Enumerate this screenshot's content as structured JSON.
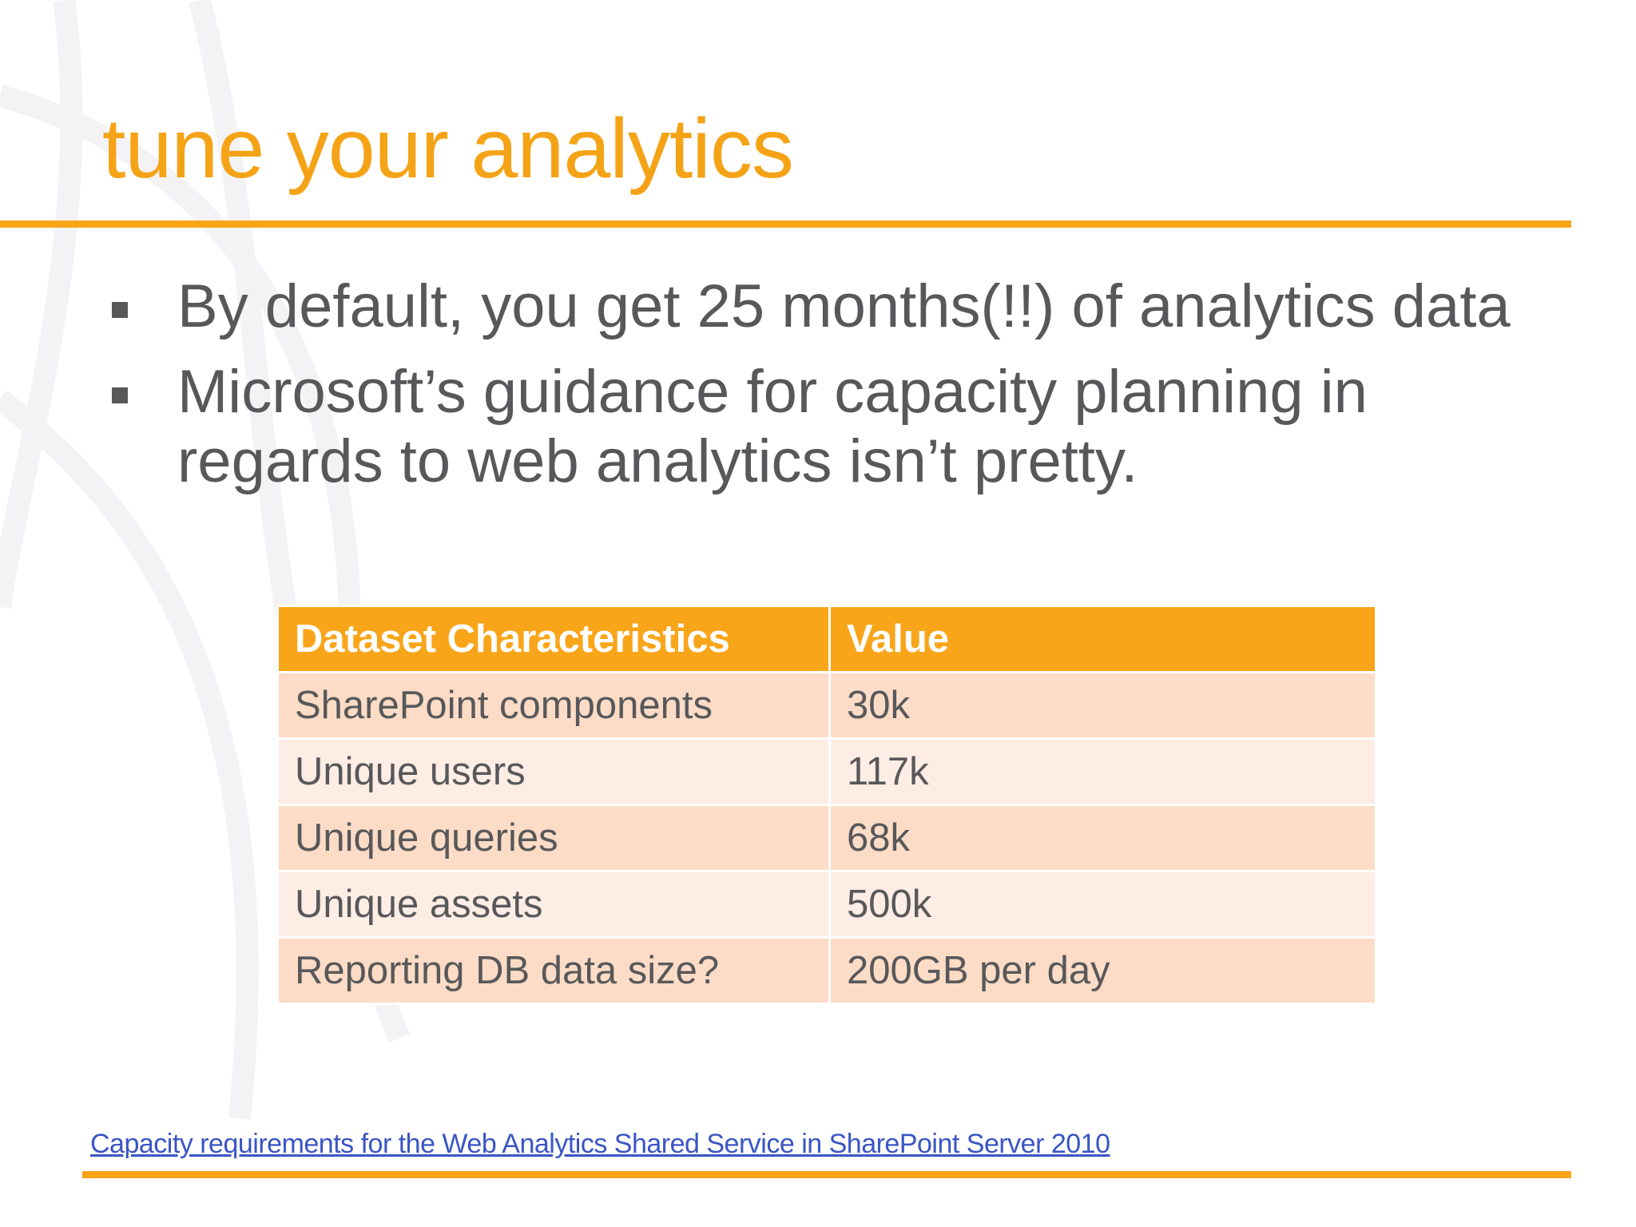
{
  "slide": {
    "title": "tune your analytics",
    "bullets": [
      "By default, you get 25 months(!!) of analytics data",
      "Microsoft’s guidance for capacity planning in regards to web analytics isn’t pretty."
    ],
    "table": {
      "headers": [
        "Dataset Characteristics",
        "Value"
      ],
      "rows": [
        [
          "SharePoint components",
          "30k"
        ],
        [
          "Unique users",
          "117k"
        ],
        [
          "Unique queries",
          "68k"
        ],
        [
          "Unique assets",
          "500k"
        ],
        [
          "Reporting DB data size?",
          "200GB per day"
        ]
      ]
    },
    "link_text": "Capacity requirements for the Web Analytics Shared Service in SharePoint Server 2010"
  },
  "colors": {
    "accent": "#F9A51A",
    "title": "#F5A316",
    "body_text": "#58585A",
    "row_odd": "#FCDCC6",
    "row_even": "#FDEDE4",
    "link": "#3A55C4"
  }
}
